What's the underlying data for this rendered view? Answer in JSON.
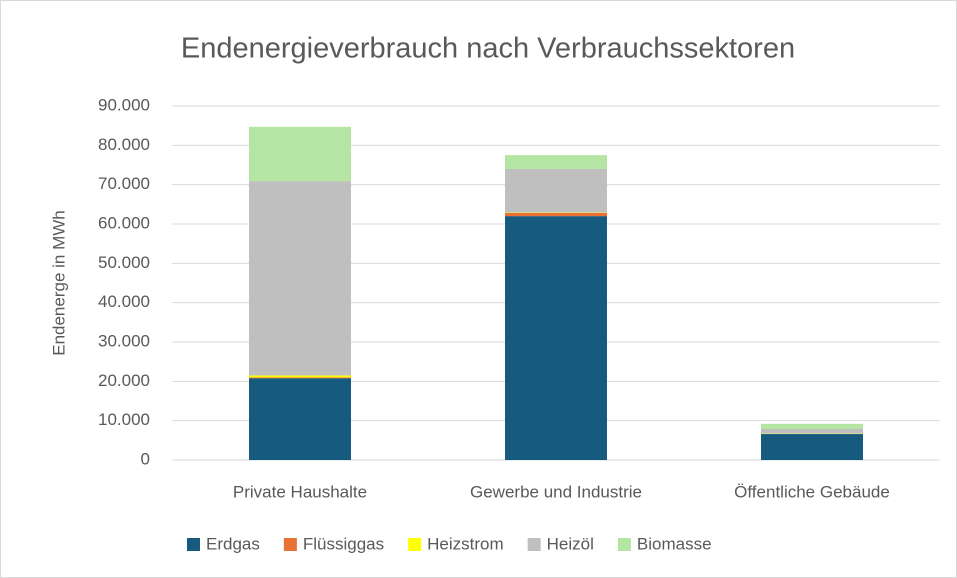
{
  "chart_data": {
    "type": "stacked_bar",
    "title": "Endenergieverbrauch nach Verbrauchssektoren",
    "y_label": "Endenerge in MWh",
    "categories": [
      "Private Haushalte",
      "Gewerbe und Industrie",
      "Öffentliche Gebäude"
    ],
    "series": [
      {
        "name": "Erdgas",
        "color": "#165a7e",
        "values": [
          20800,
          62000,
          6600
        ]
      },
      {
        "name": "Flüssiggas",
        "color": "#e97132",
        "values": [
          200,
          800,
          0
        ]
      },
      {
        "name": "Heizstrom",
        "color": "#ffff00",
        "values": [
          500,
          100,
          100
        ]
      },
      {
        "name": "Heizöl",
        "color": "#bfbfbf",
        "values": [
          49400,
          11100,
          1200
        ]
      },
      {
        "name": "Biomasse",
        "color": "#b4e5a2",
        "values": [
          13800,
          3500,
          1300
        ]
      }
    ],
    "ylim": [
      0,
      90000
    ],
    "yticks": [
      0,
      {
        "value": 10000,
        "label": "10.000"
      },
      {
        "value": 20000,
        "label": "20.000"
      },
      {
        "value": 30000,
        "label": "30.000"
      },
      {
        "value": 40000,
        "label": "40.000"
      },
      {
        "value": 50000,
        "label": "50.000"
      },
      {
        "value": 60000,
        "label": "60.000"
      },
      {
        "value": 70000,
        "label": "70.000"
      },
      {
        "value": 80000,
        "label": "80.000"
      },
      {
        "value": 90000,
        "label": "90.000"
      }
    ],
    "grid": true,
    "legend": "bottom"
  }
}
